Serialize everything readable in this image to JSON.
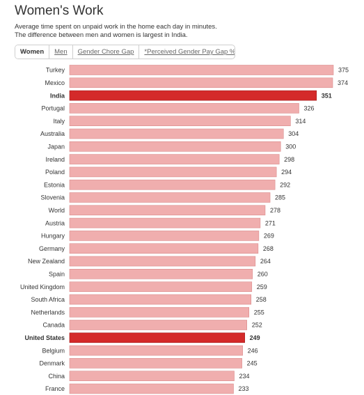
{
  "title": "Women's Work",
  "subtitle_lines": [
    "Average time spent on unpaid work in the home each day in minutes.",
    "The difference between men and women is largest in India."
  ],
  "tabs": [
    {
      "label": "Women",
      "active": true
    },
    {
      "label": "Men",
      "active": false
    },
    {
      "label": "Gender Chore Gap",
      "active": false
    },
    {
      "label": "*Perceived Gender Pay Gap %",
      "active": false
    }
  ],
  "colors": {
    "bar": "#f0aeae",
    "bar_border": "#d98a8a",
    "highlight": "#d42a2a",
    "highlight_border": "#a01818"
  },
  "chart_data": {
    "type": "bar",
    "orientation": "horizontal",
    "title": "Women's Work",
    "xlim": [
      0,
      375
    ],
    "categories": [
      "Turkey",
      "Mexico",
      "India",
      "Portugal",
      "Italy",
      "Australia",
      "Japan",
      "Ireland",
      "Poland",
      "Estonia",
      "Slovenia",
      "World",
      "Austria",
      "Hungary",
      "Germany",
      "New Zealand",
      "Spain",
      "United Kingdom",
      "South Africa",
      "Netherlands",
      "Canada",
      "United States",
      "Belgium",
      "Denmark",
      "China",
      "France"
    ],
    "values": [
      375,
      374,
      351,
      326,
      314,
      304,
      300,
      298,
      294,
      292,
      285,
      278,
      271,
      269,
      268,
      264,
      260,
      259,
      258,
      255,
      252,
      249,
      246,
      245,
      234,
      233
    ],
    "highlighted": [
      "India",
      "United States"
    ]
  }
}
